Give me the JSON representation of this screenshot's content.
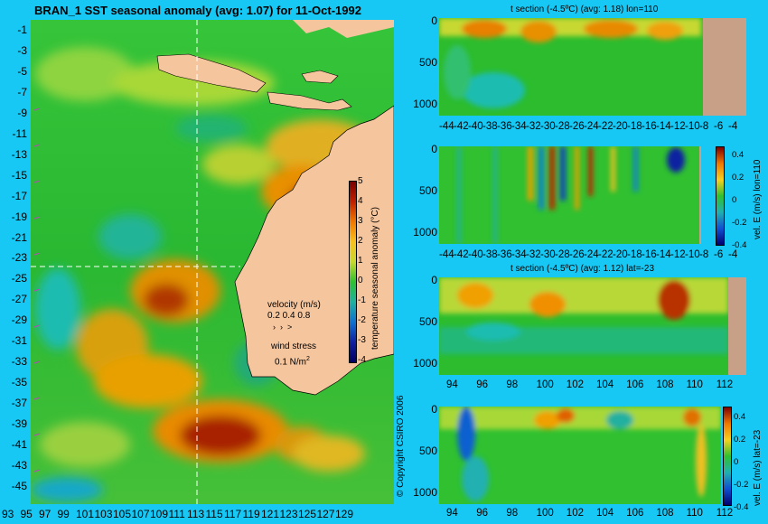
{
  "main_map": {
    "title": "BRAN_1  SST seasonal anomaly (avg: 1.07) for 11-Oct-1992",
    "y_ticks": [
      "-1",
      "-3",
      "-5",
      "-7",
      "-9",
      "-11",
      "-13",
      "-15",
      "-17",
      "-19",
      "-21",
      "-23",
      "-25",
      "-27",
      "-29",
      "-31",
      "-33",
      "-35",
      "-37",
      "-39",
      "-41",
      "-43",
      "-45"
    ],
    "x_ticks": [
      "93",
      "95",
      "97",
      "99",
      "101",
      "103",
      "105",
      "107",
      "109",
      "111",
      "113",
      "115",
      "117",
      "119",
      "121",
      "123",
      "125",
      "127",
      "129"
    ],
    "colorbar": {
      "label": "temperature seasonal anomaly (°C)",
      "ticks": [
        "5",
        "4",
        "3",
        "2",
        "1",
        "0",
        "-1",
        "-2",
        "-3",
        "-4"
      ]
    },
    "legend": {
      "velocity_label": "velocity (m/s)",
      "velocity_scale": "0.2 0.4 0.8",
      "wind_label": "wind stress",
      "wind_scale": "0.1 N/m",
      "wind_exp": "2"
    },
    "copyright": "© Copyright CSIRO 2006",
    "colors": {
      "land": "#f5c59e",
      "ocean_base": "#26c42a",
      "warm": "#f08a00",
      "hot": "#a81a00",
      "cool": "#12b4b0"
    }
  },
  "panel1": {
    "title": "t section (-4.5ºC) (avg: 1.18) lon=110",
    "y_ticks": [
      "0",
      "500",
      "1000"
    ],
    "x_ticks": [
      "-44",
      "-42",
      "-40",
      "-38",
      "-36",
      "-34",
      "-32",
      "-30",
      "-28",
      "-26",
      "-24",
      "-22",
      "-20",
      "-18",
      "-16",
      "-14",
      "-12",
      "-10",
      "-8",
      "-6",
      "-4"
    ]
  },
  "panel2": {
    "y_ticks": [
      "0",
      "500",
      "1000"
    ],
    "x_ticks": [
      "-44",
      "-42",
      "-40",
      "-38",
      "-36",
      "-34",
      "-32",
      "-30",
      "-28",
      "-26",
      "-24",
      "-22",
      "-20",
      "-18",
      "-16",
      "-14",
      "-12",
      "-10",
      "-8",
      "-6",
      "-4"
    ],
    "colorbar": {
      "label": "vel. E (m/s) lon=110",
      "ticks": [
        "0.4",
        "0.2",
        "0",
        "-0.2",
        "-0.4"
      ]
    }
  },
  "panel3": {
    "title": "t section (-4.5ºC) (avg: 1.12) lat=-23",
    "y_ticks": [
      "0",
      "500",
      "1000"
    ],
    "x_ticks": [
      "94",
      "96",
      "98",
      "100",
      "102",
      "104",
      "106",
      "108",
      "110",
      "112"
    ]
  },
  "panel4": {
    "y_ticks": [
      "0",
      "500",
      "1000"
    ],
    "x_ticks": [
      "94",
      "96",
      "98",
      "100",
      "102",
      "104",
      "106",
      "108",
      "110",
      "112"
    ],
    "colorbar": {
      "label": "vel. E (m/s) lat=-23",
      "ticks": [
        "0.4",
        "0.2",
        "0",
        "-0.2",
        "-0.4"
      ]
    }
  }
}
